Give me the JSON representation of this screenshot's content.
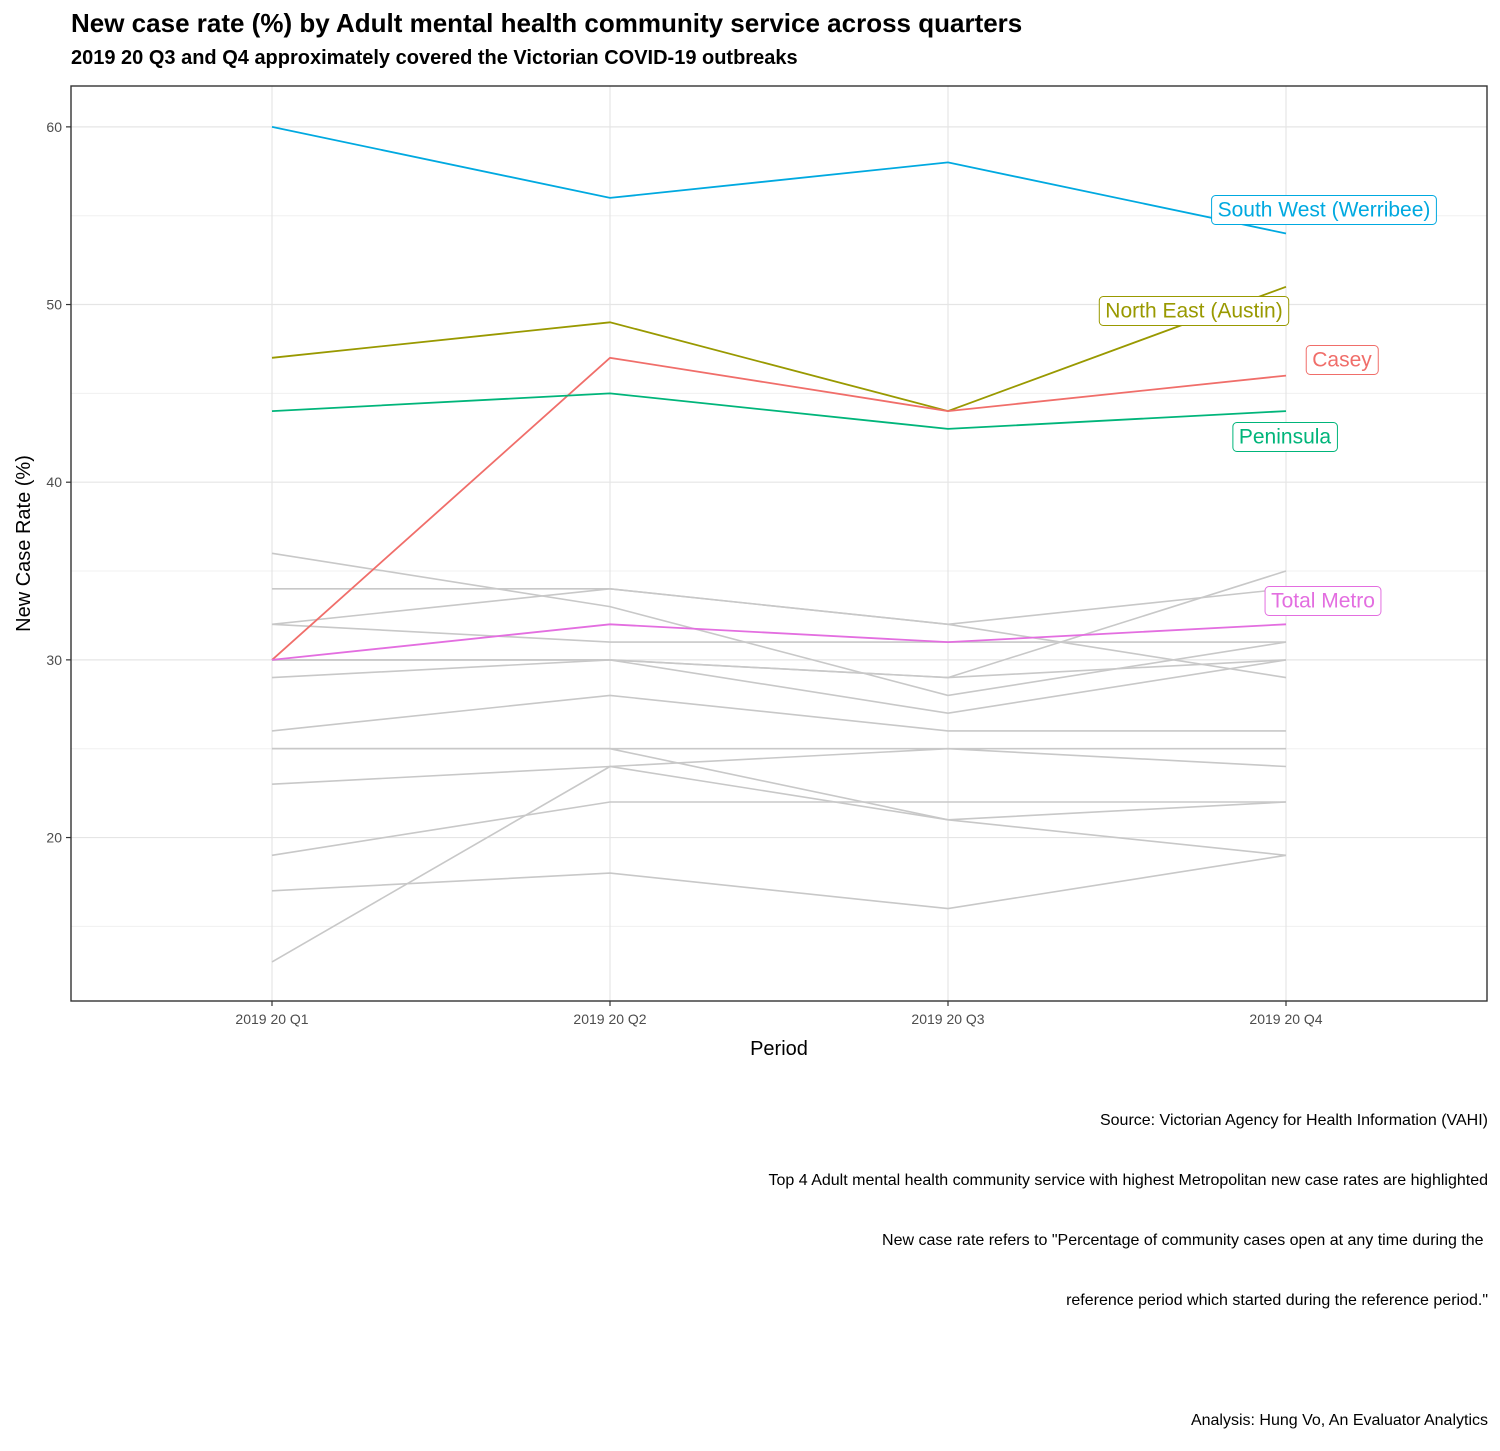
{
  "chart_data": {
    "type": "line",
    "title": "New case rate (%) by Adult mental health community service across quarters",
    "subtitle": "2019 20 Q3 and Q4 approximately covered the Victorian COVID-19 outbreaks",
    "xlabel": "Period",
    "ylabel": "New Case Rate (%)",
    "categories": [
      "2019 20 Q1",
      "2019 20 Q2",
      "2019 20 Q3",
      "2019 20 Q4"
    ],
    "ylim": [
      10.8,
      62.3
    ],
    "yticks": [
      20,
      30,
      40,
      50,
      60
    ],
    "grid": true,
    "highlighted_series": [
      {
        "name": "South West (Werribee)",
        "color": "#00A9E0",
        "values": [
          60,
          56,
          58,
          54
        ]
      },
      {
        "name": "North East (Austin)",
        "color": "#999900",
        "values": [
          47,
          49,
          44,
          51
        ]
      },
      {
        "name": "Casey",
        "color": "#F06E6A",
        "values": [
          30,
          47,
          44,
          46
        ]
      },
      {
        "name": "Peninsula",
        "color": "#00B57A",
        "values": [
          44,
          45,
          43,
          44
        ]
      },
      {
        "name": "Total Metro",
        "color": "#E36EE0",
        "values": [
          30,
          32,
          31,
          32
        ]
      }
    ],
    "background_series_color": "#c8c8c8",
    "background_series": [
      [
        36,
        33,
        28,
        31
      ],
      [
        34,
        34,
        32,
        29
      ],
      [
        32,
        34,
        32,
        34
      ],
      [
        32,
        31,
        31,
        31
      ],
      [
        30,
        30,
        27,
        30
      ],
      [
        30,
        30,
        29,
        35
      ],
      [
        29,
        30,
        29,
        30
      ],
      [
        26,
        28,
        26,
        26
      ],
      [
        25,
        25,
        25,
        25
      ],
      [
        25,
        25,
        21,
        19
      ],
      [
        23,
        24,
        25,
        24
      ],
      [
        19,
        22,
        22,
        22
      ],
      [
        17,
        18,
        16,
        19
      ],
      [
        13,
        24,
        21,
        22
      ]
    ]
  },
  "caption": {
    "lines": [
      "Source: Victorian Agency for Health Information (VAHI)",
      "Top 4 Adult mental health community service with highest Metropolitan new case rates are highlighted",
      "New case rate refers to \"Percentage of community cases open at any time during the ",
      "reference period which started during the reference period.\"",
      "",
      "Analysis: Hung Vo, An Evaluator Analytics"
    ]
  }
}
